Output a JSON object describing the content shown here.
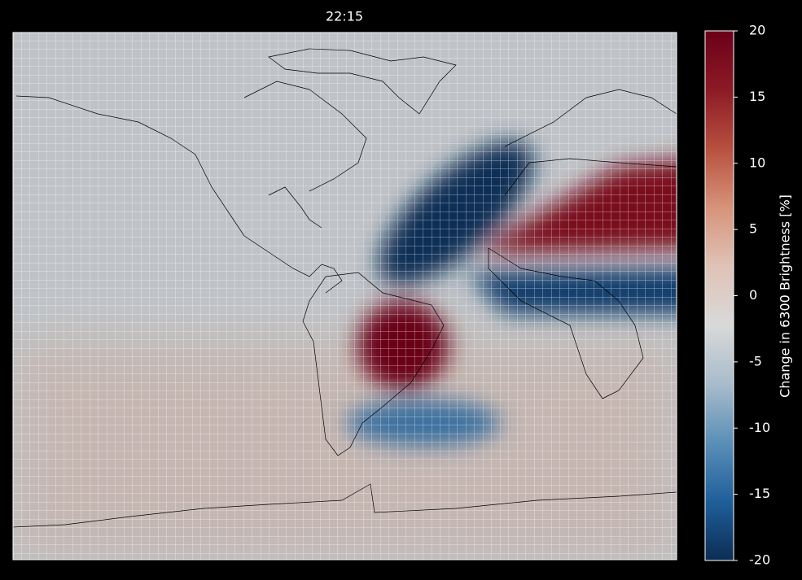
{
  "chart_data": {
    "type": "heatmap",
    "title": "22:15",
    "colorbar_label": "Change in 6300 Brightness [%]",
    "clim": [
      -20,
      20
    ],
    "cticks": [
      -20,
      -15,
      -10,
      -5,
      0,
      5,
      10,
      15,
      20
    ],
    "colormap": [
      "#0b2d55",
      "#1f5f99",
      "#5a8fb8",
      "#a9bccb",
      "#d9d9d9",
      "#dfc3b6",
      "#d7937a",
      "#b8503f",
      "#8c1a25",
      "#6b0018"
    ]
  }
}
